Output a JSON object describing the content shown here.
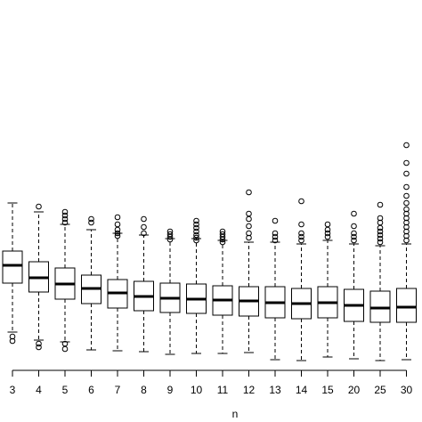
{
  "chart_data": {
    "type": "box",
    "x_label": "n",
    "categories": [
      "3",
      "4",
      "5",
      "6",
      "7",
      "8",
      "9",
      "10",
      "11",
      "12",
      "13",
      "14",
      "15",
      "20",
      "25",
      "30"
    ],
    "ylim": [
      0,
      410
    ],
    "color": "#ffffff",
    "whisker_high": [
      185,
      175,
      161,
      155,
      151,
      149,
      145,
      145,
      143,
      141,
      141,
      139,
      143,
      139,
      137,
      139
    ],
    "q3": [
      131,
      119,
      112,
      104,
      99,
      97,
      95,
      94,
      92,
      91,
      91,
      89,
      91,
      88,
      86,
      89
    ],
    "median": [
      115,
      101,
      94,
      89,
      84,
      80,
      78,
      77,
      76,
      75,
      73,
      72,
      73,
      70,
      67,
      68
    ],
    "q1": [
      95,
      85,
      77,
      72,
      67,
      64,
      62,
      61,
      59,
      58,
      56,
      55,
      56,
      52,
      51,
      51
    ],
    "whisker_low": [
      40,
      31,
      29,
      20,
      19,
      18,
      15,
      16,
      16,
      17,
      9,
      8,
      12,
      10,
      8,
      9
    ],
    "outliers": [
      [
        35,
        30
      ],
      [
        181,
        27,
        23
      ],
      [
        175,
        171,
        167,
        163,
        27,
        21
      ],
      [
        167,
        163
      ],
      [
        169,
        161,
        155,
        151,
        148
      ],
      [
        167,
        158,
        151
      ],
      [
        153,
        150,
        147,
        144
      ],
      [
        165,
        161,
        157,
        153,
        149,
        146,
        143
      ],
      [
        153,
        150,
        147,
        144,
        141
      ],
      [
        197,
        173,
        167,
        159,
        151,
        146
      ],
      [
        165,
        151,
        147,
        143
      ],
      [
        187,
        161,
        151,
        147,
        143
      ],
      [
        161,
        155,
        151,
        147
      ],
      [
        173,
        159,
        151,
        147,
        143
      ],
      [
        183,
        168,
        163,
        157,
        153,
        149,
        145,
        141
      ],
      [
        250,
        230,
        218,
        203,
        193,
        185,
        178,
        173,
        168,
        163,
        158,
        153,
        148,
        143
      ]
    ]
  }
}
